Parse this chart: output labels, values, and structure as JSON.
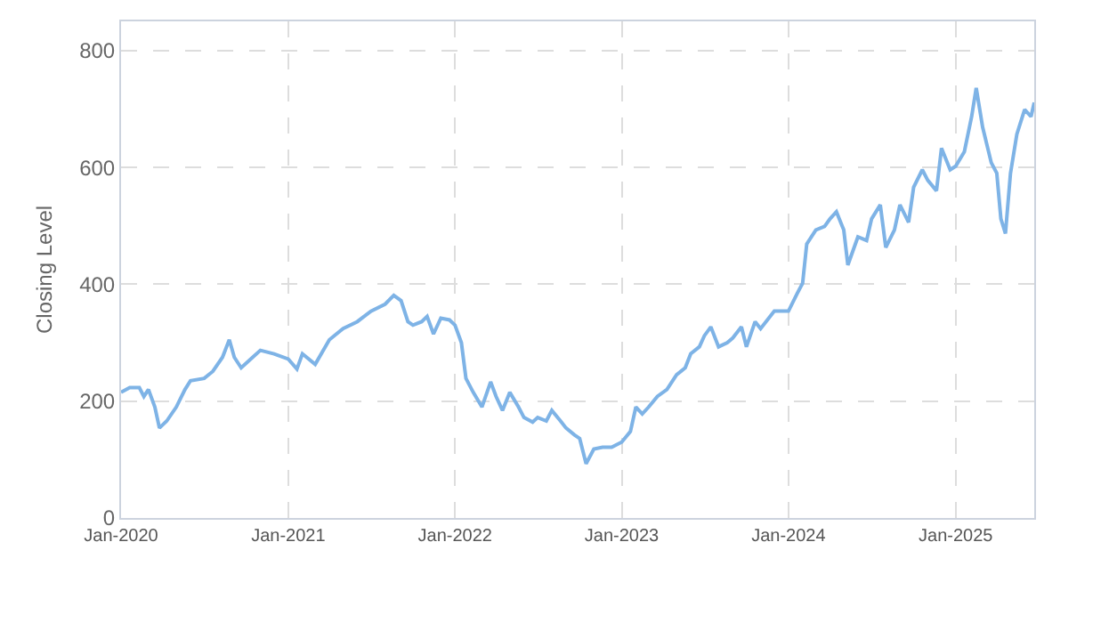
{
  "chart_data": {
    "type": "line",
    "ylabel": "Closing Level",
    "xlim": [
      "2020-01-01",
      "2025-06-22"
    ],
    "ylim": [
      0,
      850
    ],
    "yticks": [
      0,
      200,
      400,
      600,
      800
    ],
    "xticks": [
      {
        "value": "2020-01-01",
        "label": "Jan-2020"
      },
      {
        "value": "2021-01-01",
        "label": "Jan-2021"
      },
      {
        "value": "2022-01-01",
        "label": "Jan-2022"
      },
      {
        "value": "2023-01-01",
        "label": "Jan-2023"
      },
      {
        "value": "2024-01-01",
        "label": "Jan-2024"
      },
      {
        "value": "2025-01-01",
        "label": "Jan-2025"
      }
    ],
    "grid": true,
    "marker": "none",
    "line_style": "solid",
    "x": [
      "2020-01-01",
      "2020-01-20",
      "2020-02-10",
      "2020-02-20",
      "2020-03-01",
      "2020-03-15",
      "2020-03-25",
      "2020-04-10",
      "2020-05-01",
      "2020-05-20",
      "2020-06-01",
      "2020-07-01",
      "2020-07-20",
      "2020-08-10",
      "2020-08-25",
      "2020-09-05",
      "2020-09-20",
      "2020-10-15",
      "2020-11-01",
      "2020-12-01",
      "2021-01-01",
      "2021-01-20",
      "2021-02-01",
      "2021-03-01",
      "2021-04-01",
      "2021-05-01",
      "2021-06-01",
      "2021-07-01",
      "2021-08-01",
      "2021-08-20",
      "2021-09-05",
      "2021-09-20",
      "2021-10-01",
      "2021-10-20",
      "2021-11-01",
      "2021-11-15",
      "2021-12-01",
      "2021-12-20",
      "2022-01-01",
      "2022-01-15",
      "2022-01-25",
      "2022-02-10",
      "2022-03-01",
      "2022-03-20",
      "2022-04-01",
      "2022-04-15",
      "2022-05-01",
      "2022-05-20",
      "2022-06-01",
      "2022-06-20",
      "2022-07-01",
      "2022-07-20",
      "2022-08-01",
      "2022-08-20",
      "2022-09-01",
      "2022-09-20",
      "2022-10-01",
      "2022-10-15",
      "2022-11-01",
      "2022-11-20",
      "2022-12-10",
      "2023-01-01",
      "2023-01-20",
      "2023-02-01",
      "2023-02-15",
      "2023-03-01",
      "2023-03-20",
      "2023-04-10",
      "2023-05-01",
      "2023-05-20",
      "2023-06-01",
      "2023-06-20",
      "2023-07-01",
      "2023-07-15",
      "2023-08-01",
      "2023-08-20",
      "2023-09-01",
      "2023-09-20",
      "2023-10-01",
      "2023-10-20",
      "2023-11-01",
      "2023-12-01",
      "2024-01-01",
      "2024-01-20",
      "2024-02-01",
      "2024-02-10",
      "2024-03-01",
      "2024-03-20",
      "2024-04-01",
      "2024-04-15",
      "2024-05-01",
      "2024-05-10",
      "2024-06-01",
      "2024-06-20",
      "2024-07-01",
      "2024-07-20",
      "2024-08-01",
      "2024-08-20",
      "2024-09-01",
      "2024-09-20",
      "2024-10-01",
      "2024-10-20",
      "2024-11-01",
      "2024-11-20",
      "2024-12-01",
      "2024-12-20",
      "2025-01-01",
      "2025-01-20",
      "2025-02-05",
      "2025-02-15",
      "2025-03-01",
      "2025-03-20",
      "2025-04-01",
      "2025-04-10",
      "2025-04-20",
      "2025-05-01",
      "2025-05-15",
      "2025-06-01",
      "2025-06-15",
      "2025-06-22"
    ],
    "series": [
      {
        "color": "#7eb3e6",
        "values": [
          215,
          223,
          223,
          208,
          220,
          190,
          154,
          166,
          190,
          220,
          235,
          239,
          251,
          275,
          305,
          275,
          257,
          275,
          287,
          281,
          272,
          255,
          281,
          263,
          305,
          324,
          336,
          354,
          366,
          381,
          372,
          336,
          330,
          336,
          345,
          315,
          342,
          339,
          330,
          300,
          239,
          215,
          190,
          233,
          208,
          184,
          215,
          190,
          172,
          164,
          172,
          166,
          184,
          166,
          154,
          142,
          136,
          93,
          118,
          121,
          121,
          130,
          148,
          190,
          178,
          190,
          208,
          220,
          245,
          257,
          281,
          293,
          312,
          327,
          293,
          300,
          308,
          327,
          293,
          336,
          324,
          354,
          354,
          384,
          402,
          469,
          493,
          499,
          512,
          524,
          493,
          433,
          481,
          475,
          512,
          536,
          463,
          493,
          536,
          506,
          566,
          596,
          578,
          560,
          633,
          596,
          602,
          627,
          687,
          736,
          669,
          608,
          590,
          512,
          487,
          590,
          657,
          699,
          687,
          711
        ]
      }
    ]
  }
}
